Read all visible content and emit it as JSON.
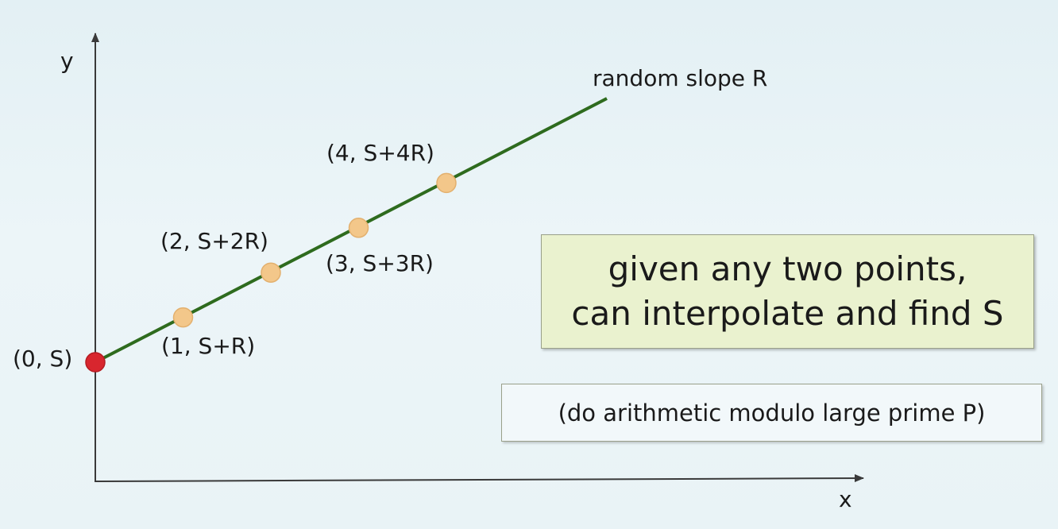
{
  "axes": {
    "x_label": "x",
    "y_label": "y"
  },
  "line": {
    "label": "random slope R",
    "color": "#2e6b1e"
  },
  "points": [
    {
      "label": "(0, S)",
      "x": 0,
      "color": "#d8262e"
    },
    {
      "label": "(1, S+R)",
      "x": 1,
      "color": "#f3c78a"
    },
    {
      "label": "(2, S+2R)",
      "x": 2,
      "color": "#f3c78a"
    },
    {
      "label": "(3, S+3R)",
      "x": 3,
      "color": "#f3c78a"
    },
    {
      "label": "(4, S+4R)",
      "x": 4,
      "color": "#f3c78a"
    }
  ],
  "info_box": {
    "line1": "given any two points,",
    "line2": "can interpolate and find S"
  },
  "note_box": {
    "text": "(do arithmetic modulo large prime P)"
  },
  "colors": {
    "axis": "#3a3a3a",
    "info_background": "#eaf2cf",
    "background": "#e6f2f6"
  }
}
